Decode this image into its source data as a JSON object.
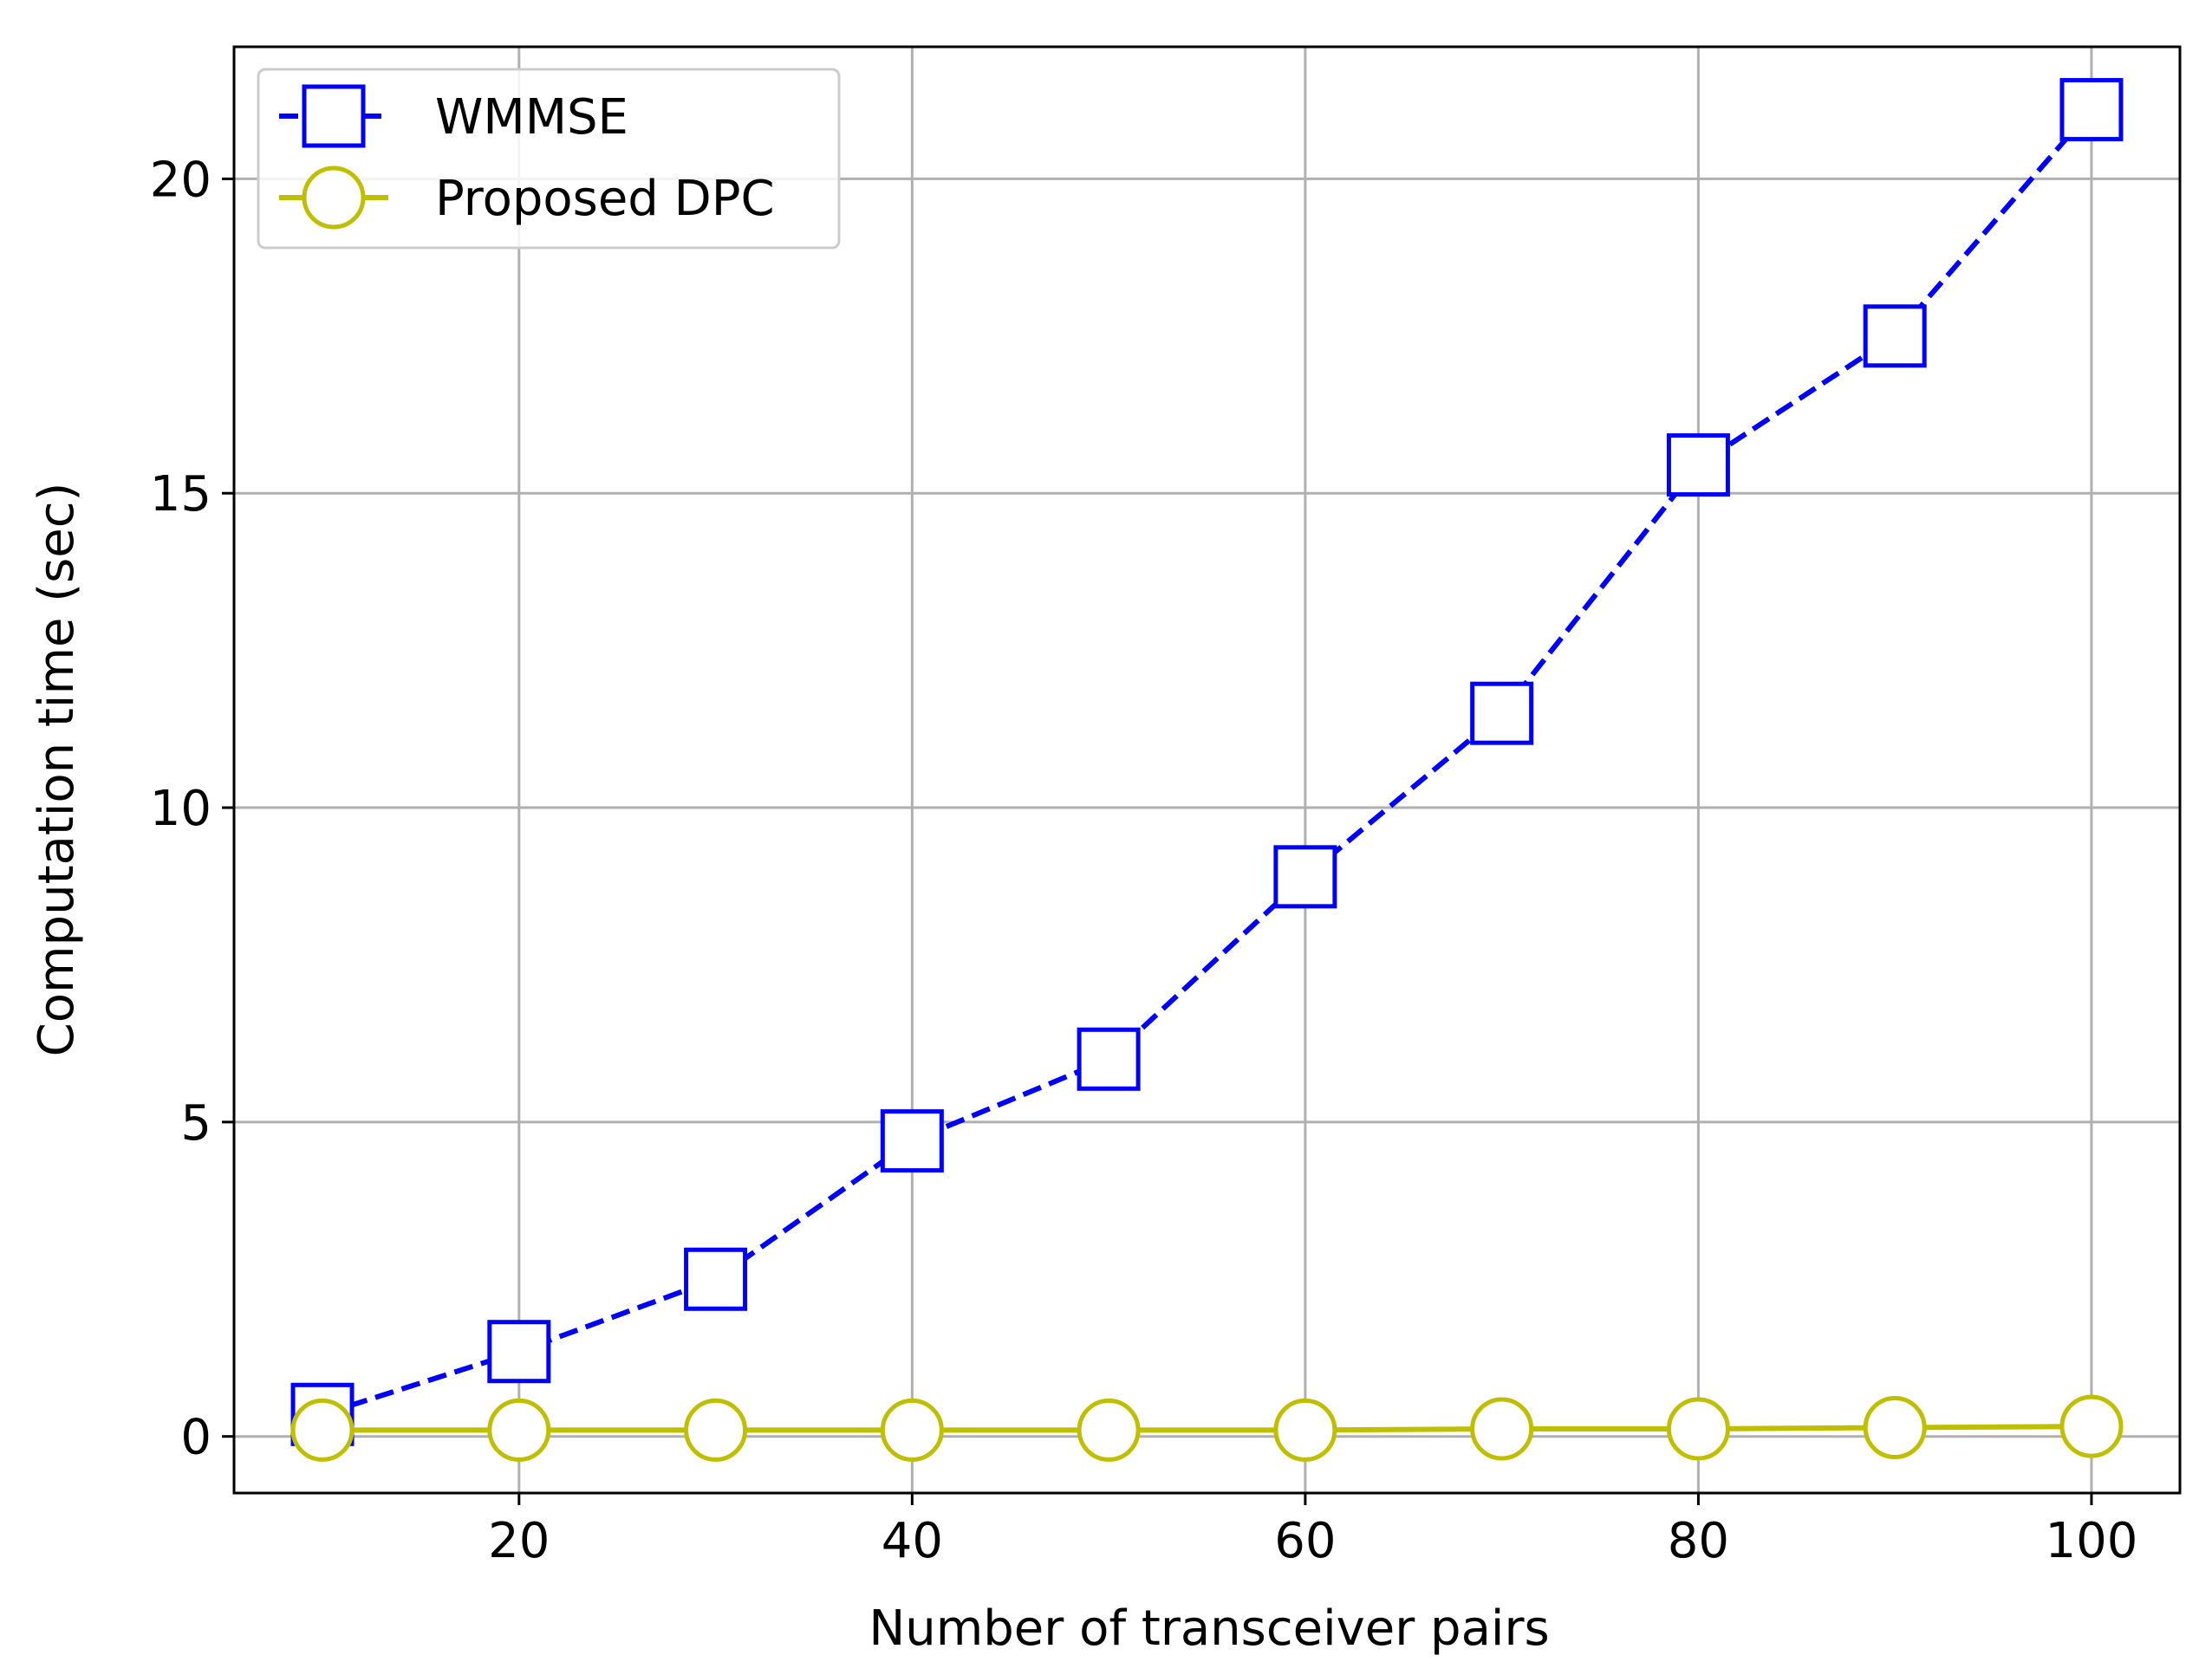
{
  "chart_data": {
    "type": "line",
    "title": "",
    "xlabel": "Number of transceiver pairs",
    "ylabel": "Computation time (sec)",
    "xlim": [
      5.5,
      104.5
    ],
    "ylim": [
      -0.9,
      22.1
    ],
    "xticks": [
      20,
      40,
      60,
      80,
      100
    ],
    "yticks": [
      0,
      5,
      10,
      15,
      20
    ],
    "grid": true,
    "legend_position": "upper-left",
    "x": [
      10,
      20,
      30,
      40,
      50,
      60,
      70,
      80,
      90,
      100
    ],
    "series": [
      {
        "name": "WMMSE",
        "values": [
          0.35,
          1.35,
          2.5,
          4.7,
          6.0,
          8.9,
          11.5,
          15.45,
          17.5,
          21.1
        ],
        "color": "#0000ff",
        "line_style": "dashed",
        "marker": "square"
      },
      {
        "name": "Proposed DPC",
        "values": [
          0.1,
          0.1,
          0.1,
          0.1,
          0.1,
          0.1,
          0.12,
          0.12,
          0.14,
          0.16
        ],
        "color": "#bfbf00",
        "line_style": "solid",
        "marker": "circle"
      }
    ]
  }
}
